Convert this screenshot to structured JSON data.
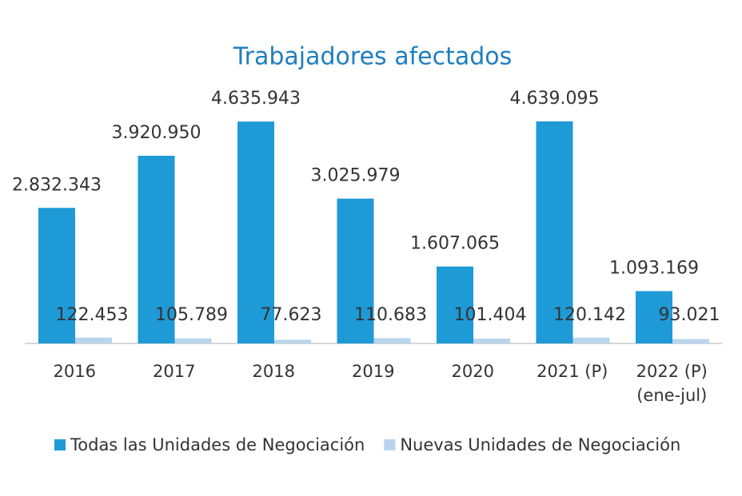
{
  "chart_data": {
    "type": "bar",
    "title": "Trabajadores afectados",
    "categories": [
      "2016",
      "2017",
      "2018",
      "2019",
      "2020",
      "2021 (P)",
      "2022 (P)\n(ene-jul)"
    ],
    "series": [
      {
        "name": "Todas las Unidades de Negociación",
        "color": "#1e9ad6",
        "values": [
          2832343,
          3920950,
          4635943,
          3025979,
          1607065,
          4639095,
          1093169
        ],
        "value_labels": [
          "2.832.343",
          "3.920.950",
          "4.635.943",
          "3.025.979",
          "1.607.065",
          "4.639.095",
          "1.093.169"
        ]
      },
      {
        "name": "Nuevas Unidades de Negociación",
        "color": "#b9d5ec",
        "values": [
          122453,
          105789,
          77623,
          110683,
          101404,
          120142,
          93021
        ],
        "value_labels": [
          "122.453",
          "105.789",
          "77.623",
          "110.683",
          "101.404",
          "120.142",
          "93.021"
        ]
      }
    ],
    "legend": "bottom"
  }
}
